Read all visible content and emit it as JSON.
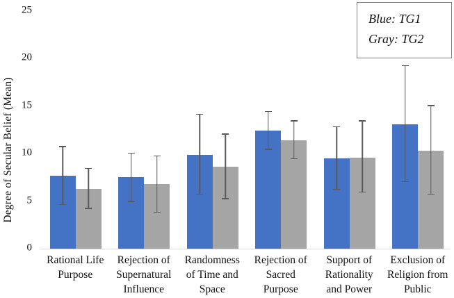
{
  "chart_data": {
    "type": "bar",
    "title": "",
    "xlabel": "",
    "ylabel": "Degree of Secular Belief (Mean)",
    "ylim": [
      0,
      25
    ],
    "yticks": [
      0,
      5,
      10,
      15,
      20,
      25
    ],
    "grid": false,
    "legend_position": "top-right",
    "categories": [
      "Rational Life Purpose",
      "Rejection of Supernatural Influence",
      "Randomness of Time and Space",
      "Rejection of Sacred Purpose",
      "Support of Rationality and Power",
      "Exclusion of Religion from Public"
    ],
    "series": [
      {
        "name": "TG1",
        "color": "#4472C4",
        "values": [
          7.7,
          7.5,
          9.9,
          12.4,
          9.5,
          13.1
        ],
        "error_low": [
          4.6,
          4.9,
          5.7,
          10.4,
          6.2,
          7.0
        ],
        "error_high": [
          10.8,
          10.1,
          14.2,
          14.5,
          12.9,
          19.3
        ]
      },
      {
        "name": "TG2",
        "color": "#A5A5A5",
        "values": [
          6.3,
          6.8,
          8.6,
          11.4,
          9.6,
          10.3
        ],
        "error_low": [
          4.2,
          3.8,
          5.2,
          9.4,
          5.9,
          5.7
        ],
        "error_high": [
          8.5,
          9.8,
          12.1,
          13.5,
          13.5,
          15.1
        ]
      }
    ]
  },
  "legend": {
    "line1": "Blue: TG1",
    "line2": "Gray: TG2"
  },
  "colors": {
    "tg1_blue": "#4472C4",
    "tg2_gray": "#A5A5A5",
    "error_bar": "#595959",
    "axis_line": "#D9D9D9",
    "legend_border": "#808080"
  }
}
